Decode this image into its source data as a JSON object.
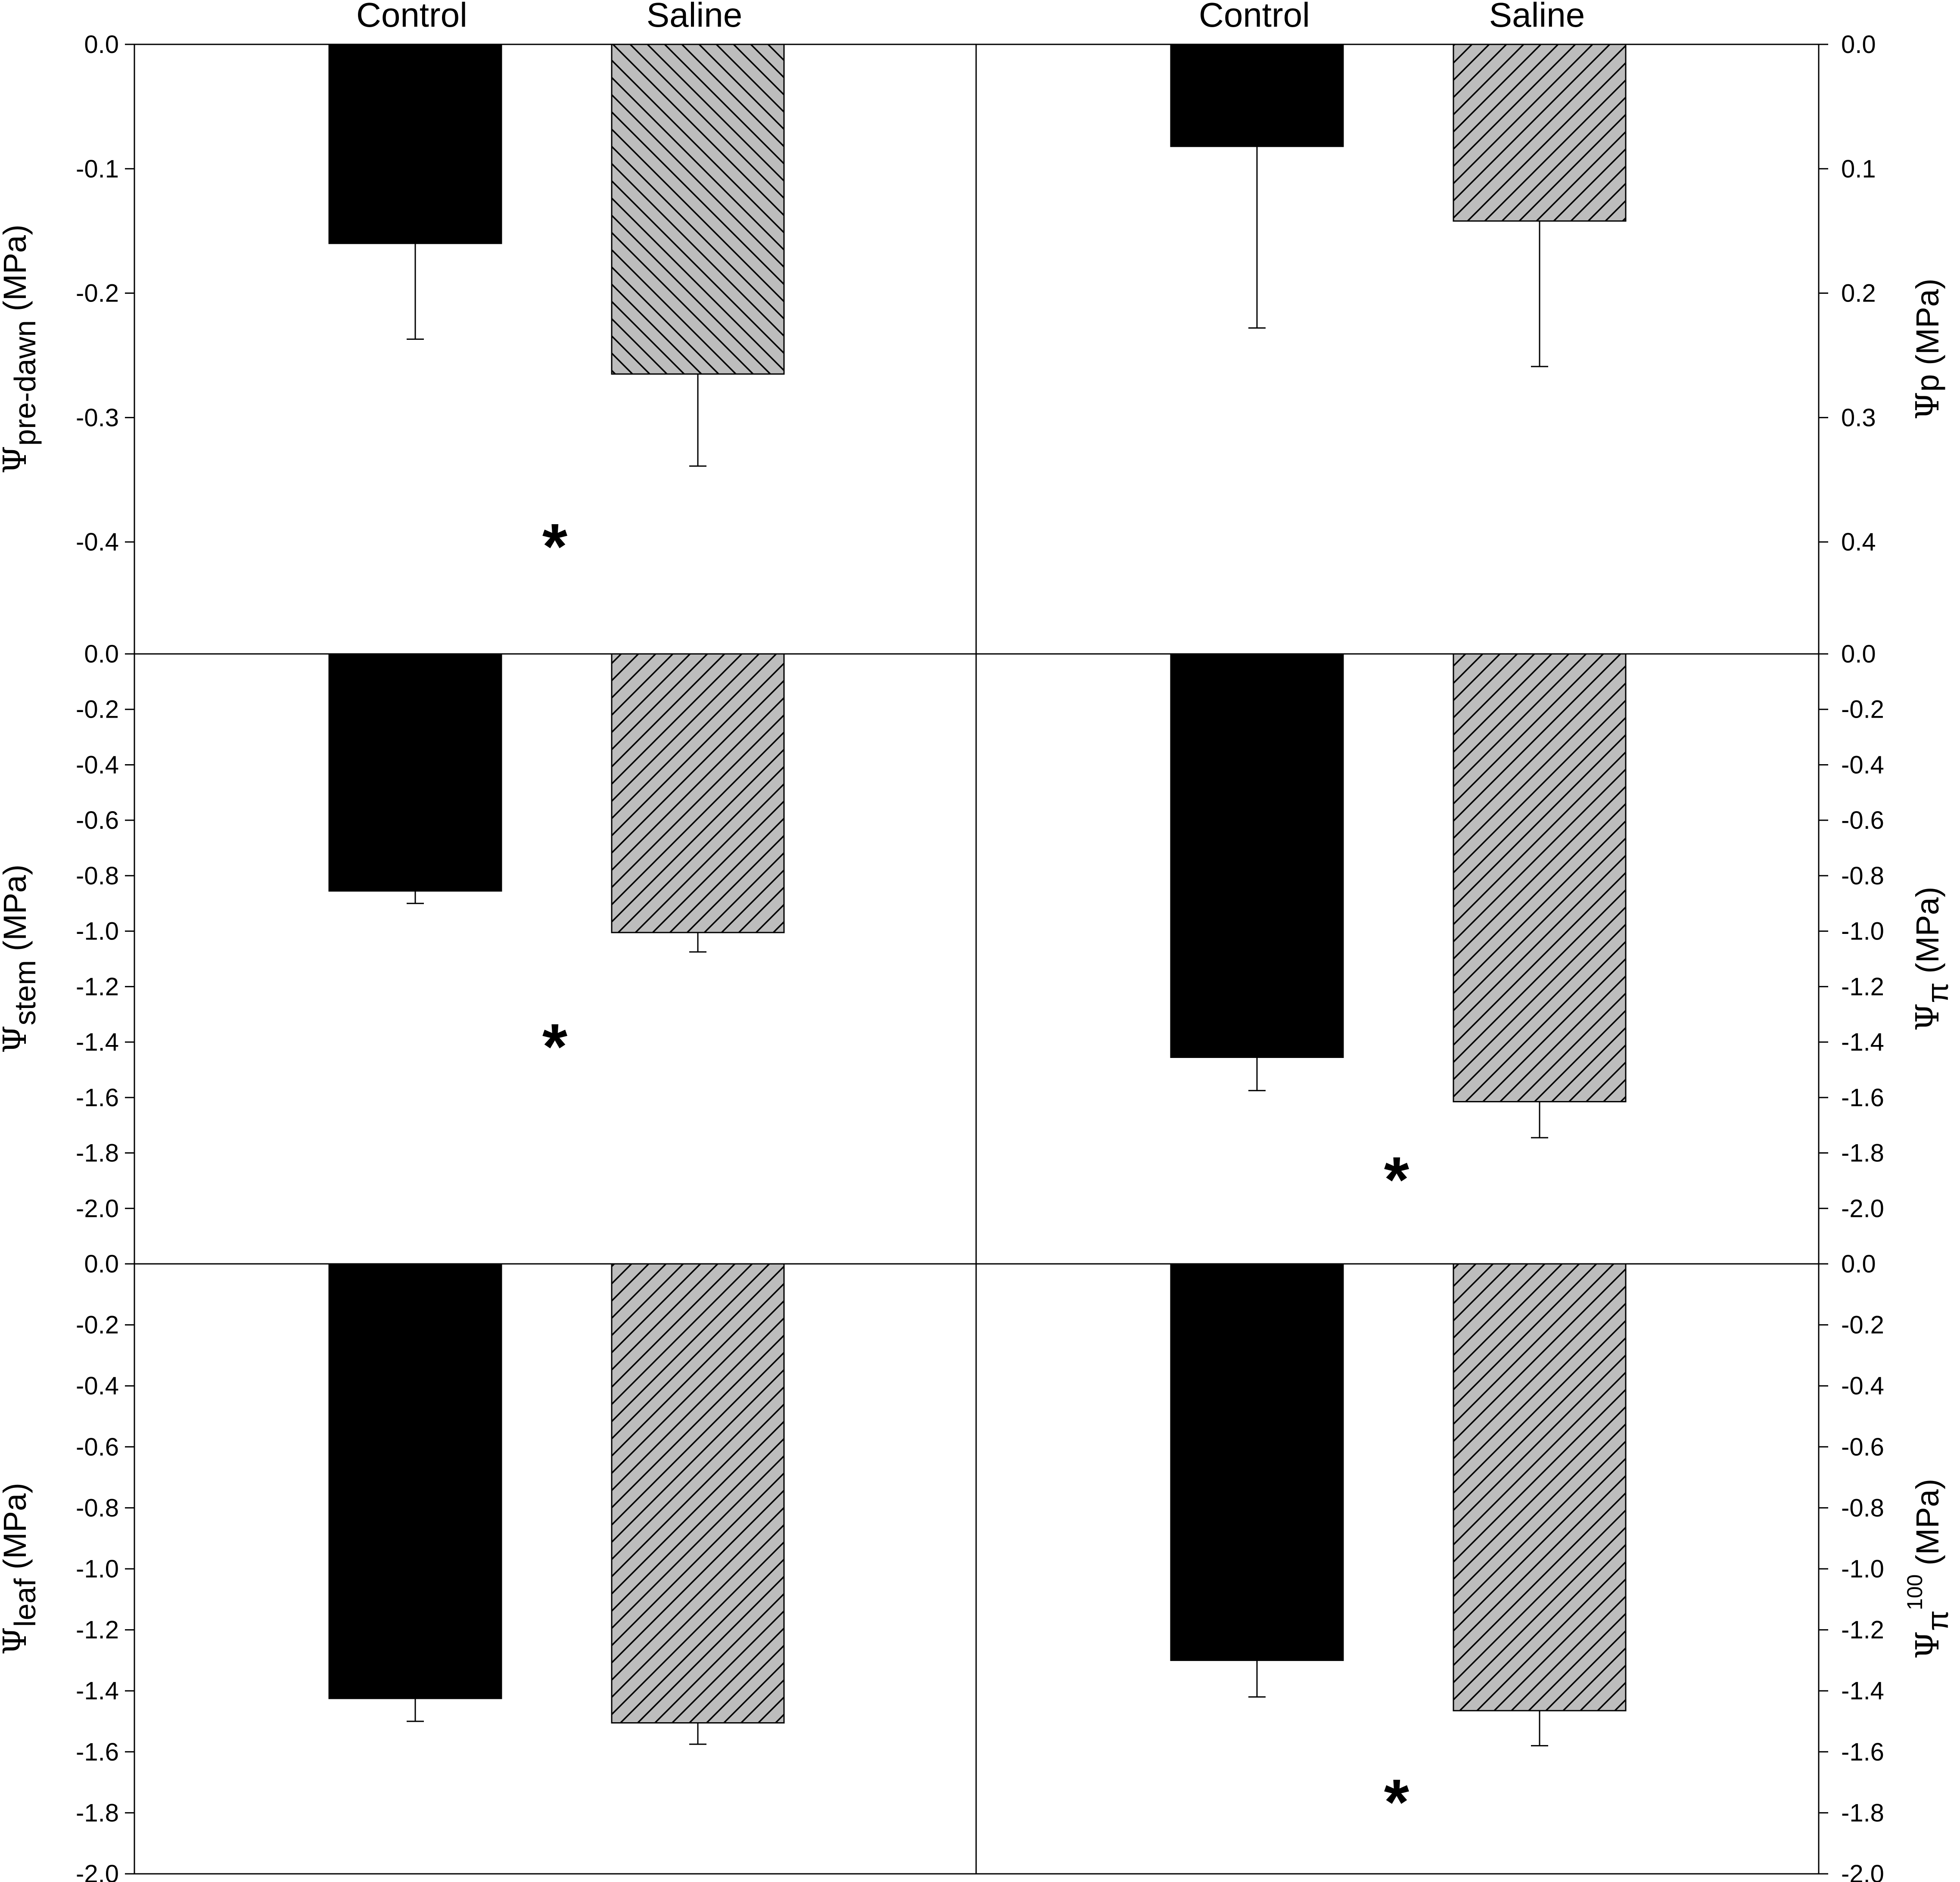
{
  "colors": {
    "control": "#000000",
    "saline": "#bdbdbd",
    "hatch": "#000000",
    "axis": "#000000"
  },
  "chart_data": [
    {
      "type": "bar",
      "panel": "top-left",
      "categories": [
        "Control",
        "Saline"
      ],
      "values": [
        -0.16,
        -0.265
      ],
      "errors": [
        0.077,
        0.074
      ],
      "ylabel": {
        "symbol": "Ψ",
        "sub": "pre-dawn",
        "sup": "",
        "unit": " (MPa)"
      },
      "ylabel_side": "left",
      "ylim": [
        -0.49,
        0.0
      ],
      "yticks": [
        0.0,
        -0.1,
        -0.2,
        -0.3,
        -0.4
      ],
      "yticklabels": [
        "0.0",
        "-0.1",
        "-0.2",
        "-0.3",
        "-0.4"
      ],
      "annotations": [
        {
          "text": "*",
          "y": -0.4
        }
      ]
    },
    {
      "type": "bar",
      "panel": "top-right",
      "categories": [
        "Control",
        "Saline"
      ],
      "values": [
        0.082,
        0.142
      ],
      "errors": [
        0.146,
        0.117
      ],
      "ylabel": {
        "symbol": "Ψ",
        "sub": "",
        "sup": "",
        "unit": "p (MPa)"
      },
      "ylabel_side": "right",
      "inverted": true,
      "ylim": [
        0.0,
        0.49
      ],
      "yticks": [
        0.0,
        0.1,
        0.2,
        0.3,
        0.4
      ],
      "yticklabels": [
        "0.0",
        "0.1",
        "0.2",
        "0.3",
        "0.4"
      ],
      "annotations": []
    },
    {
      "type": "bar",
      "panel": "middle-left",
      "categories": [
        "Control",
        "Saline"
      ],
      "values": [
        -0.855,
        -1.005
      ],
      "errors": [
        0.045,
        0.07
      ],
      "ylabel": {
        "symbol": "Ψ",
        "sub": "stem",
        "sup": "",
        "unit": " (MPa)"
      },
      "ylabel_side": "left",
      "ylim": [
        -2.2,
        0.0
      ],
      "yticks": [
        0.0,
        -0.2,
        -0.4,
        -0.6,
        -0.8,
        -1.0,
        -1.2,
        -1.4,
        -1.6,
        -1.8,
        -2.0
      ],
      "yticklabels": [
        "0.0",
        "-0.2",
        "-0.4",
        "-0.6",
        "-0.8",
        "-1.0",
        "-1.2",
        "-1.4",
        "-1.6",
        "-1.8",
        "-2.0"
      ],
      "annotations": [
        {
          "text": "*",
          "y": -1.4
        }
      ]
    },
    {
      "type": "bar",
      "panel": "middle-right",
      "categories": [
        "Control",
        "Saline"
      ],
      "values": [
        -1.455,
        -1.615
      ],
      "errors": [
        0.12,
        0.13
      ],
      "ylabel": {
        "symbol": "Ψ",
        "sub": "π",
        "sup": "",
        "unit": " (MPa)"
      },
      "ylabel_side": "right",
      "ylim": [
        -2.2,
        0.0
      ],
      "yticks": [
        0.0,
        -0.2,
        -0.4,
        -0.6,
        -0.8,
        -1.0,
        -1.2,
        -1.4,
        -1.6,
        -1.8,
        -2.0
      ],
      "yticklabels": [
        "0.0",
        "-0.2",
        "-0.4",
        "-0.6",
        "-0.8",
        "-1.0",
        "-1.2",
        "-1.4",
        "-1.6",
        "-1.8",
        "-2.0"
      ],
      "annotations": [
        {
          "text": "*",
          "y": -1.88
        }
      ]
    },
    {
      "type": "bar",
      "panel": "bottom-left",
      "categories": [
        "Control",
        "Saline"
      ],
      "values": [
        -1.425,
        -1.505
      ],
      "errors": [
        0.075,
        0.07
      ],
      "ylabel": {
        "symbol": "Ψ",
        "sub": "leaf",
        "sup": "",
        "unit": " (MPa)"
      },
      "ylabel_side": "left",
      "ylim": [
        -2.0,
        0.0
      ],
      "yticks": [
        0.0,
        -0.2,
        -0.4,
        -0.6,
        -0.8,
        -1.0,
        -1.2,
        -1.4,
        -1.6,
        -1.8,
        -2.0
      ],
      "yticklabels": [
        "0.0",
        "-0.2",
        "-0.4",
        "-0.6",
        "-0.8",
        "-1.0",
        "-1.2",
        "-1.4",
        "-1.6",
        "-1.8",
        "-2.0"
      ],
      "annotations": []
    },
    {
      "type": "bar",
      "panel": "bottom-right",
      "categories": [
        "Control",
        "Saline"
      ],
      "values": [
        -1.3,
        -1.465
      ],
      "errors": [
        0.12,
        0.115
      ],
      "ylabel": {
        "symbol": "Ψ",
        "sub": "π",
        "sup": "100",
        "unit": " (MPa)"
      },
      "ylabel_side": "right",
      "ylim": [
        -2.0,
        0.0
      ],
      "yticks": [
        0.0,
        -0.2,
        -0.4,
        -0.6,
        -0.8,
        -1.0,
        -1.2,
        -1.4,
        -1.6,
        -1.8,
        -2.0
      ],
      "yticklabels": [
        "0.0",
        "-0.2",
        "-0.4",
        "-0.6",
        "-0.8",
        "-1.0",
        "-1.2",
        "-1.4",
        "-1.6",
        "-1.8",
        "-2.0"
      ],
      "annotations": [
        {
          "text": "*",
          "y": -1.75
        }
      ]
    }
  ]
}
